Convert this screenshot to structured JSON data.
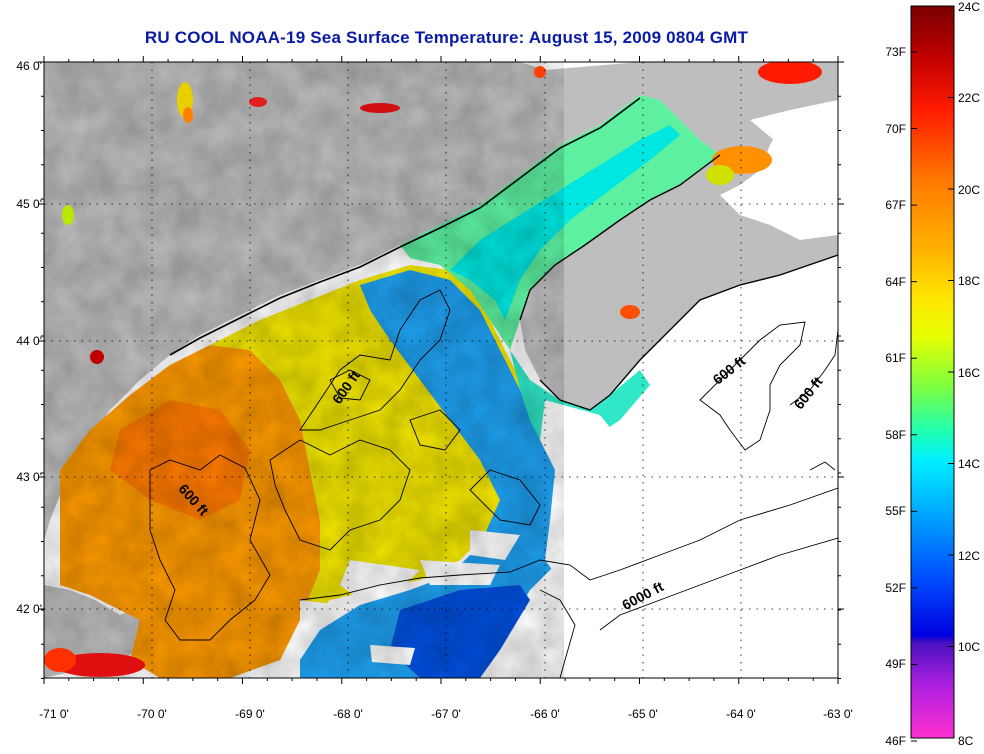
{
  "title": "RU COOL  NOAA-19  Sea Surface Temperature:  August 15, 2009 0804 GMT",
  "map": {
    "lon_labels": [
      "-71 0'",
      "-70 0'",
      "-69 0'",
      "-68 0'",
      "-67 0'",
      "-66 0'",
      "-65 0'",
      "-64 0'",
      "-63 0'"
    ],
    "lat_labels": [
      "46 0'",
      "45 0'",
      "44 0'",
      "43 0'",
      "42 0'"
    ],
    "lon_range": [
      -71,
      -63
    ],
    "lat_range": [
      41.5,
      46
    ],
    "land_color": "#bebebe",
    "nodata_color": "#ffffff",
    "contour_labels": [
      "600 ft",
      "600 ft",
      "600 ft",
      "600 ft",
      "6000 ft"
    ]
  },
  "colorbar": {
    "celsius_labels": [
      "24C",
      "22C",
      "20C",
      "18C",
      "16C",
      "14C",
      "12C",
      "10C",
      "8C"
    ],
    "fahrenheit_labels": [
      "73F",
      "70F",
      "67F",
      "64F",
      "61F",
      "58F",
      "55F",
      "52F",
      "49F",
      "46F"
    ],
    "range_c": [
      8,
      24
    ]
  }
}
